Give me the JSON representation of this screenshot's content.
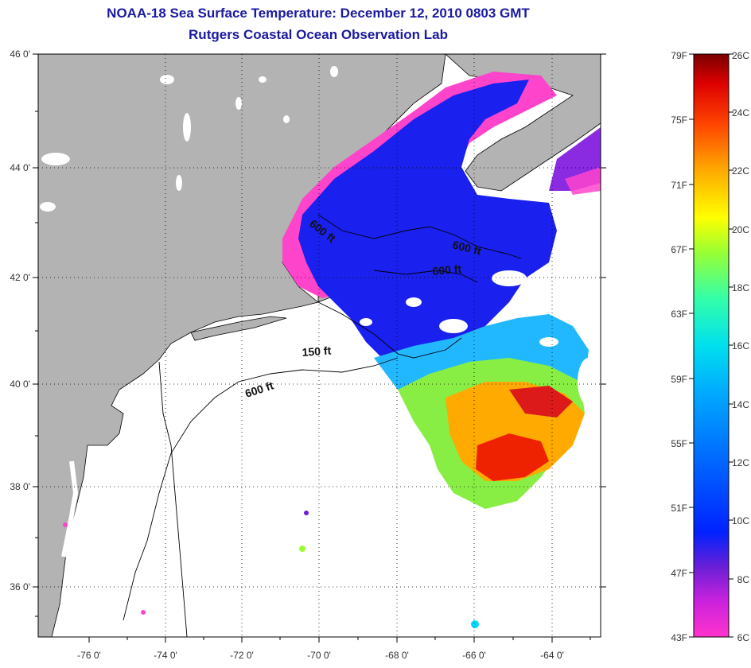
{
  "title": {
    "line1": "NOAA-18 Sea Surface Temperature:  December 12, 2010 0803 GMT",
    "line2": "Rutgers Coastal Ocean Observation Lab"
  },
  "map": {
    "lon_ticks": [
      "-76 0'",
      "-74 0'",
      "-72 0'",
      "-70 0'",
      "-68 0'",
      "-66 0'",
      "-64 0'"
    ],
    "lat_ticks": [
      "46 0'",
      "44 0'",
      "42 0'",
      "40 0'",
      "38 0'",
      "36 0'"
    ],
    "land_color": "#b3b3b3",
    "contour_labels": [
      "600 ft",
      "600 ft",
      "600 ft",
      "150 ft",
      "600 ft"
    ]
  },
  "colorbar": {
    "fahrenheit": [
      "79F",
      "75F",
      "71F",
      "67F",
      "63F",
      "59F",
      "55F",
      "51F",
      "47F",
      "43F"
    ],
    "celsius": [
      "26C",
      "24C",
      "22C",
      "20C",
      "18C",
      "16C",
      "14C",
      "12C",
      "10C",
      "8C",
      "6C"
    ],
    "colors": [
      "#ff33cc",
      "#7a1fd6",
      "#0022ff",
      "#0088ff",
      "#00d8ff",
      "#33ffcc",
      "#99ff33",
      "#ffff00",
      "#ffaa00",
      "#ff5500",
      "#ee0000",
      "#880000"
    ]
  }
}
